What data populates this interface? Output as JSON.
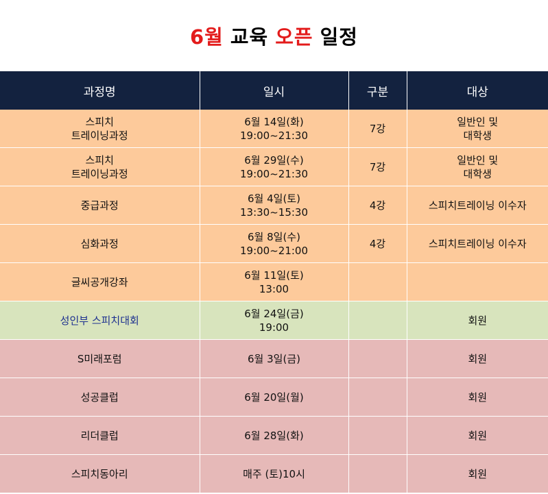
{
  "title": {
    "part1": "6월",
    "part2": "교육",
    "part3": "오픈",
    "part4": "일정",
    "accent_color": "#e31b1b"
  },
  "table": {
    "headers": [
      "과정명",
      "일시",
      "구분",
      "대상"
    ],
    "header_bg": "#13223f",
    "rows": [
      {
        "style": "orange",
        "course": "스피치\n트레이닝과정",
        "datetime": "6월 14일(화)\n19:00~21:30",
        "type": "7강",
        "target": "일반인 및\n대학생"
      },
      {
        "style": "orange",
        "course": "스피치\n트레이닝과정",
        "datetime": "6월 29일(수)\n19:00~21:30",
        "type": "7강",
        "target": "일반인 및\n대학생"
      },
      {
        "style": "orange",
        "course": "중급과정",
        "datetime": "6월 4일(토)\n13:30~15:30",
        "type": "4강",
        "target": "스피치트레이닝 이수자"
      },
      {
        "style": "orange",
        "course": "심화과정",
        "datetime": "6월 8일(수)\n19:00~21:00",
        "type": "4강",
        "target": "스피치트레이닝 이수자"
      },
      {
        "style": "orange",
        "course": "글씨공개강좌",
        "datetime": "6월 11일(토)\n13:00",
        "type": "",
        "target": ""
      },
      {
        "style": "green",
        "course": "성인부 스피치대회",
        "datetime": "6월 24일(금)\n19:00",
        "type": "",
        "target": "회원"
      },
      {
        "style": "pink",
        "course": "S미래포럼",
        "datetime": "6월 3일(금)",
        "type": "",
        "target": "회원"
      },
      {
        "style": "pink",
        "course": "성공클럽",
        "datetime": "6월 20일(월)",
        "type": "",
        "target": "회원"
      },
      {
        "style": "pink",
        "course": "리더클럽",
        "datetime": "6월 28일(화)",
        "type": "",
        "target": "회원"
      },
      {
        "style": "pink",
        "course": "스피치동아리",
        "datetime": "매주 (토)10시",
        "type": "",
        "target": "회원"
      }
    ],
    "colors": {
      "orange": "#fdca9b",
      "green": "#d8e4bd",
      "pink": "#e6b9b8",
      "blue_text": "#1c2f8f"
    }
  }
}
